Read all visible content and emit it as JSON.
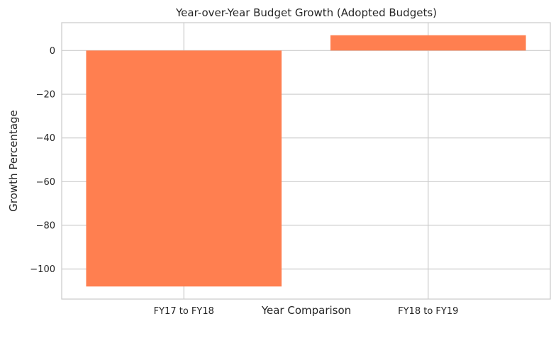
{
  "chart_data": {
    "type": "bar",
    "title": "Year-over-Year Budget Growth (Adopted Budgets)",
    "xlabel": "Year Comparison",
    "ylabel": "Growth Percentage",
    "categories": [
      "FY17 to FY18",
      "FY18 to FY19"
    ],
    "values": [
      -108,
      7
    ],
    "ylim": [
      -113.75,
      12.75
    ],
    "yticks": [
      0,
      -20,
      -40,
      -60,
      -80,
      -100
    ],
    "ytick_labels": [
      "0",
      "−20",
      "−40",
      "−60",
      "−80",
      "−100"
    ],
    "grid": true,
    "bar_color": "#ff7f50",
    "grid_color": "#cccccc",
    "axis_color": "#cccccc"
  }
}
